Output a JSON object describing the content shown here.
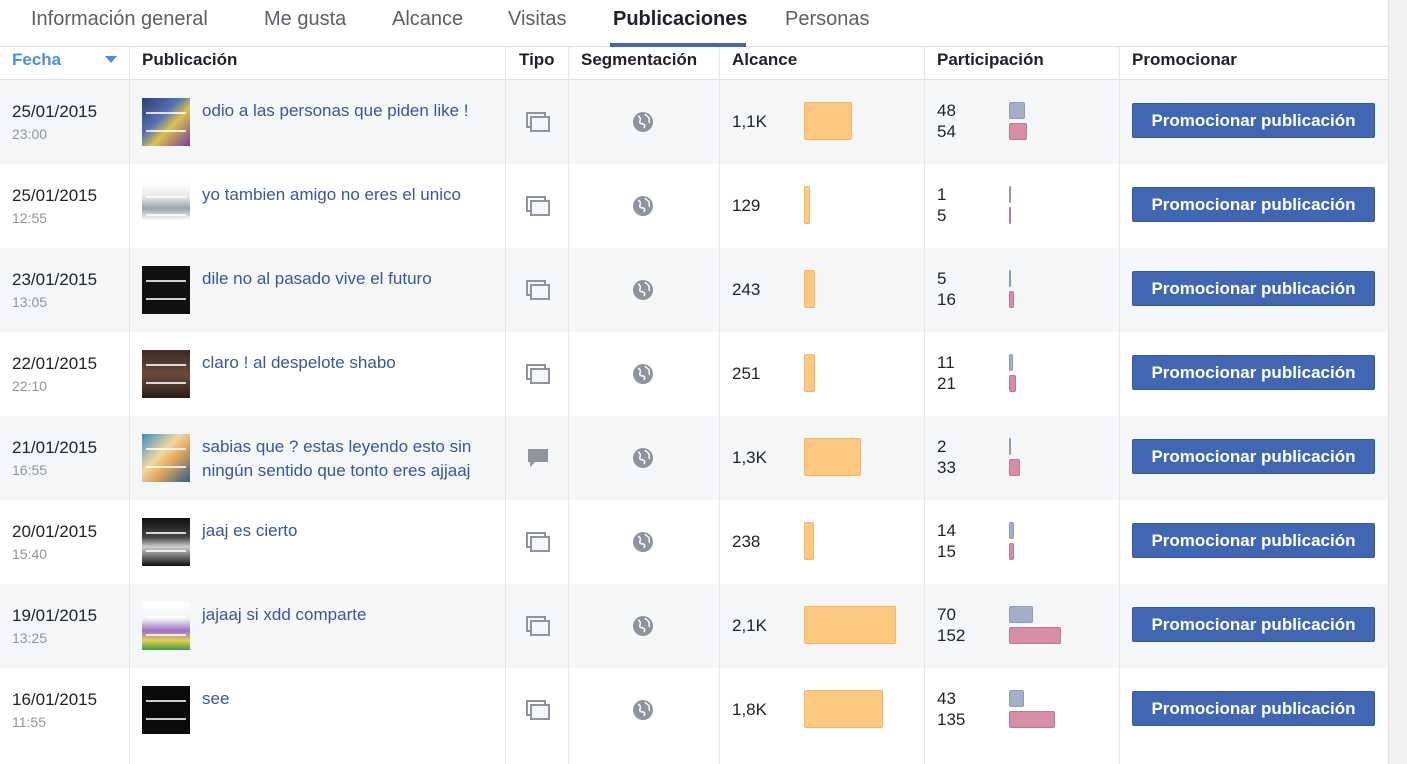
{
  "tabs": [
    {
      "label": "Información general"
    },
    {
      "label": "Me gusta"
    },
    {
      "label": "Alcance"
    },
    {
      "label": "Visitas"
    },
    {
      "label": "Publicaciones"
    },
    {
      "label": "Personas"
    }
  ],
  "active_tab": "Publicaciones",
  "columns": {
    "fecha": "Fecha",
    "publicacion": "Publicación",
    "tipo": "Tipo",
    "segmentacion": "Segmentación",
    "alcance": "Alcance",
    "participacion": "Participación",
    "promocionar": "Promocionar"
  },
  "sort": {
    "column": "Fecha",
    "direction": "descending"
  },
  "colors": {
    "accent": "#4267b2",
    "sorted_header": "#4a90e2",
    "link_text": "#365899",
    "reach_bar": "#fdc981",
    "engagement_bar_a": "#a4aec9",
    "engagement_bar_b": "#d48ea5"
  },
  "posts": [
    {
      "date": "25/01/2015",
      "time": "23:00",
      "text": "odio a las personas que piden like !",
      "type_icon": "photo-icon",
      "targeting_icon": "globe-icon",
      "reach": "1,1K",
      "reach_value": 1100,
      "engagement_a": "48",
      "engagement_b": "54",
      "button": "Promocionar publicación"
    },
    {
      "date": "25/01/2015",
      "time": "12:55",
      "text": "yo tambien amigo no eres el unico",
      "type_icon": "photo-icon",
      "targeting_icon": "globe-icon",
      "reach": "129",
      "reach_value": 129,
      "engagement_a": "1",
      "engagement_b": "5",
      "button": "Promocionar publicación"
    },
    {
      "date": "23/01/2015",
      "time": "13:05",
      "text": "dile no al pasado vive el futuro",
      "type_icon": "photo-icon",
      "targeting_icon": "globe-icon",
      "reach": "243",
      "reach_value": 243,
      "engagement_a": "5",
      "engagement_b": "16",
      "button": "Promocionar publicación"
    },
    {
      "date": "22/01/2015",
      "time": "22:10",
      "text": "claro ! al despelote shabo",
      "type_icon": "photo-icon",
      "targeting_icon": "globe-icon",
      "reach": "251",
      "reach_value": 251,
      "engagement_a": "11",
      "engagement_b": "21",
      "button": "Promocionar publicación"
    },
    {
      "date": "21/01/2015",
      "time": "16:55",
      "text": "sabias que ? estas leyendo esto sin ningún sentido que tonto eres ajjaaj",
      "type_icon": "status-icon",
      "targeting_icon": "globe-icon",
      "reach": "1,3K",
      "reach_value": 1300,
      "engagement_a": "2",
      "engagement_b": "33",
      "button": "Promocionar publicación"
    },
    {
      "date": "20/01/2015",
      "time": "15:40",
      "text": "jaaj es cierto",
      "type_icon": "photo-icon",
      "targeting_icon": "globe-icon",
      "reach": "238",
      "reach_value": 238,
      "engagement_a": "14",
      "engagement_b": "15",
      "button": "Promocionar publicación"
    },
    {
      "date": "19/01/2015",
      "time": "13:25",
      "text": "jajaaj si xdd comparte",
      "type_icon": "photo-icon",
      "targeting_icon": "globe-icon",
      "reach": "2,1K",
      "reach_value": 2100,
      "engagement_a": "70",
      "engagement_b": "152",
      "button": "Promocionar publicación"
    },
    {
      "date": "16/01/2015",
      "time": "11:55",
      "text": "see",
      "type_icon": "photo-icon",
      "targeting_icon": "globe-icon",
      "reach": "1,8K",
      "reach_value": 1800,
      "engagement_a": "43",
      "engagement_b": "135",
      "button": "Promocionar publicación"
    }
  ]
}
